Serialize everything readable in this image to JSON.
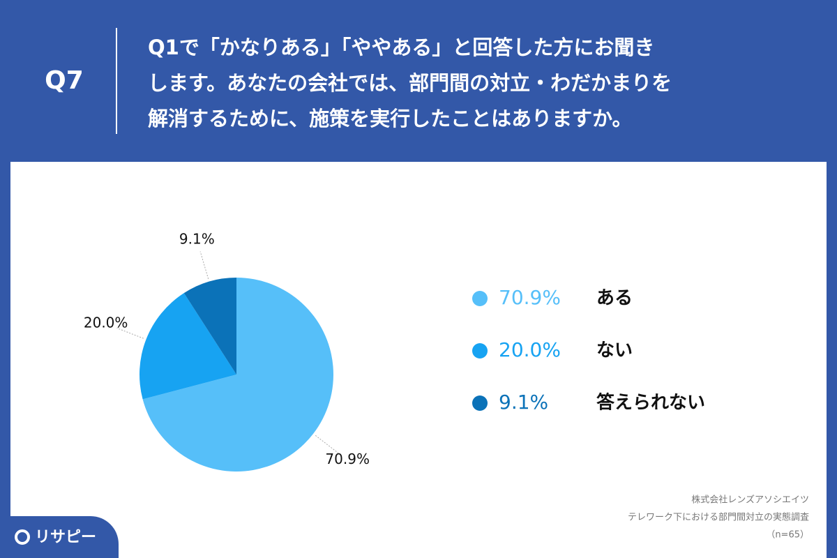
{
  "header": {
    "badge": "Q7",
    "question_lines": [
      "Q1で「かなりある」「ややある」と回答した方にお聞き",
      "します。あなたの会社では、部門間の対立・わだかまりを",
      "解消するために、施策を実行したことはありますか。"
    ]
  },
  "chart_data": {
    "type": "pie",
    "categories": [
      "ある",
      "ない",
      "答えられない"
    ],
    "values": [
      70.9,
      20.0,
      9.1
    ],
    "value_labels": [
      "70.9%",
      "20.0%",
      "9.1%"
    ],
    "colors": [
      "#56bff9",
      "#17a3f2",
      "#0b72b8"
    ]
  },
  "source": {
    "lines": [
      "株式会社レンズアソシエイツ",
      "テレワーク下における部門間対立の実態調査",
      "（n=65）"
    ]
  },
  "logo": "リサピー"
}
